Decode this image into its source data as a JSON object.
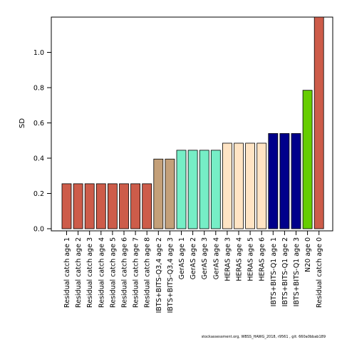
{
  "chart_data": {
    "type": "bar",
    "ylabel": "SD",
    "ylim": [
      0,
      1.2
    ],
    "yticks": [
      "0.0",
      "0.2",
      "0.4",
      "0.6",
      "0.8",
      "1.0"
    ],
    "grid": false,
    "categories": [
      "Residual catch age 1",
      "Residual catch age 2",
      "Residual catch age 3",
      "Residual catch age 4",
      "Residual catch age 5",
      "Residual catch age 6",
      "Residual catch age 7",
      "Residual catch age 8",
      "IBTS+BITS-Q3,4 age 2",
      "IBTS+BITS-Q3,4 age 3",
      "GerAS age 1",
      "GerAS age 2",
      "GerAS age 3",
      "GerAS age 4",
      "HERAS age 3",
      "HERAS age 4",
      "HERAS age 5",
      "HERAS age 6",
      "IBTS+BITS-Q1 age 1",
      "IBTS+BITS-Q1 age 2",
      "IBTS+BITS-Q1 age 3",
      "N20 age 0",
      "Residual catch age 0"
    ],
    "values": [
      0.255,
      0.255,
      0.255,
      0.255,
      0.255,
      0.255,
      0.255,
      0.255,
      0.395,
      0.395,
      0.445,
      0.445,
      0.445,
      0.445,
      0.485,
      0.485,
      0.485,
      0.485,
      0.54,
      0.54,
      0.54,
      0.785,
      1.2
    ],
    "colors": [
      "#cd5c4a",
      "#cd5c4a",
      "#cd5c4a",
      "#cd5c4a",
      "#cd5c4a",
      "#cd5c4a",
      "#cd5c4a",
      "#cd5c4a",
      "#c4a079",
      "#c4a079",
      "#76eec6",
      "#76eec6",
      "#76eec6",
      "#76eec6",
      "#ffe4c4",
      "#ffe4c4",
      "#ffe4c4",
      "#ffe4c4",
      "#00008b",
      "#00008b",
      "#00008b",
      "#66cd00",
      "#cd5c4a"
    ]
  },
  "footer": "stockassessment.org, WBSS_HAWG_2018, r9561 , git: 660a0bbab189"
}
